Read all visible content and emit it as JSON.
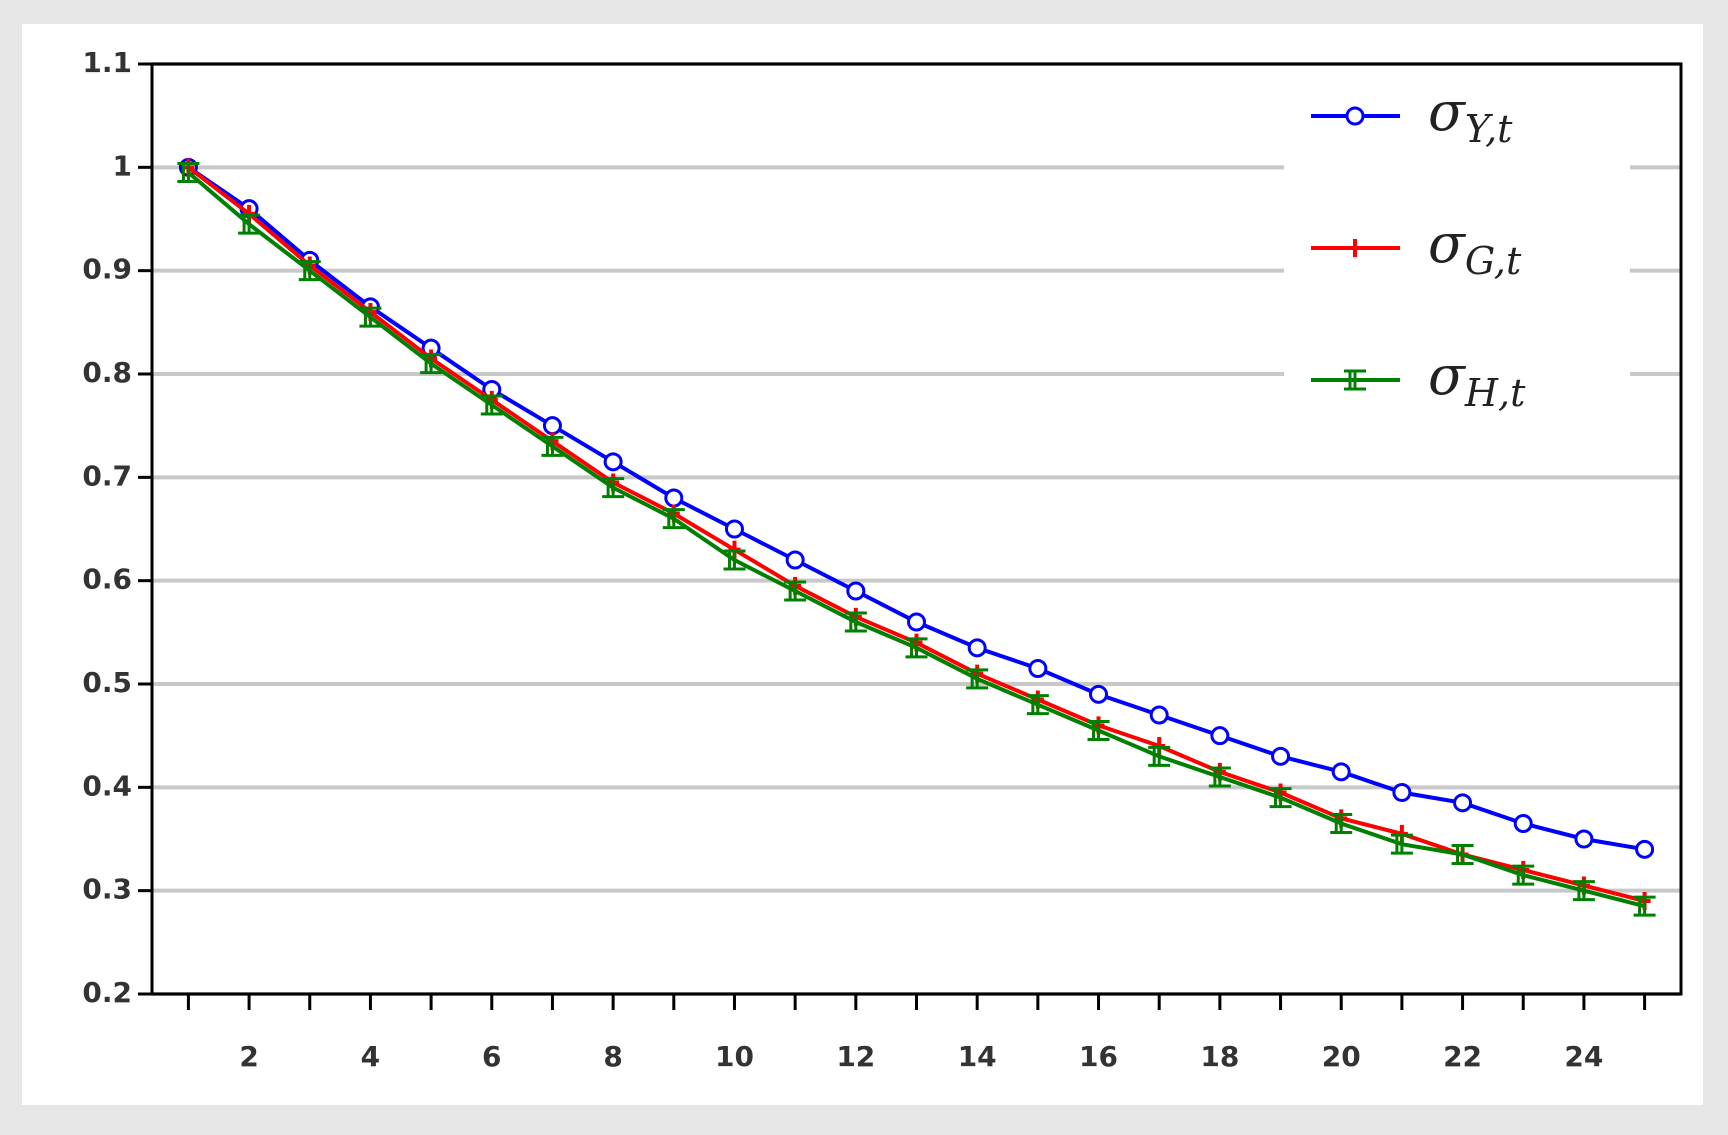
{
  "chart_data": {
    "type": "line",
    "x": [
      1,
      2,
      3,
      4,
      5,
      6,
      7,
      8,
      9,
      10,
      11,
      12,
      13,
      14,
      15,
      16,
      17,
      18,
      19,
      20,
      21,
      22,
      23,
      24,
      25
    ],
    "series": [
      {
        "name": "σY,t",
        "color": "#0000ff",
        "marker": "circle",
        "values": [
          1.0,
          0.96,
          0.91,
          0.865,
          0.825,
          0.785,
          0.75,
          0.715,
          0.68,
          0.65,
          0.62,
          0.59,
          0.56,
          0.535,
          0.515,
          0.49,
          0.47,
          0.45,
          0.43,
          0.415,
          0.395,
          0.385,
          0.365,
          0.35,
          0.34
        ]
      },
      {
        "name": "σG,t",
        "color": "#ff0000",
        "marker": "cross",
        "values": [
          1.0,
          0.955,
          0.905,
          0.86,
          0.815,
          0.775,
          0.735,
          0.695,
          0.665,
          0.63,
          0.595,
          0.565,
          0.54,
          0.51,
          0.485,
          0.46,
          0.44,
          0.415,
          0.395,
          0.37,
          0.355,
          0.335,
          0.32,
          0.305,
          0.29
        ]
      },
      {
        "name": "σH,t",
        "color": "#008000",
        "marker": "ibeam",
        "values": [
          0.995,
          0.945,
          0.9,
          0.855,
          0.81,
          0.77,
          0.73,
          0.69,
          0.66,
          0.62,
          0.59,
          0.56,
          0.535,
          0.505,
          0.48,
          0.455,
          0.43,
          0.41,
          0.39,
          0.365,
          0.345,
          0.335,
          0.315,
          0.3,
          0.285
        ]
      }
    ],
    "xlim": [
      0.4,
      25.6
    ],
    "xticks": [
      2,
      4,
      6,
      8,
      10,
      12,
      14,
      16,
      18,
      20,
      22,
      24
    ],
    "xminorticks": [
      1,
      3,
      5,
      7,
      9,
      11,
      13,
      15,
      17,
      19,
      21,
      23,
      25
    ],
    "ylim": [
      0.2,
      1.1
    ],
    "yticks": [
      0.2,
      0.3,
      0.4,
      0.5,
      0.6,
      0.7,
      0.8,
      0.9,
      1.0,
      1.1
    ],
    "grid": true,
    "legend": "upper right"
  }
}
